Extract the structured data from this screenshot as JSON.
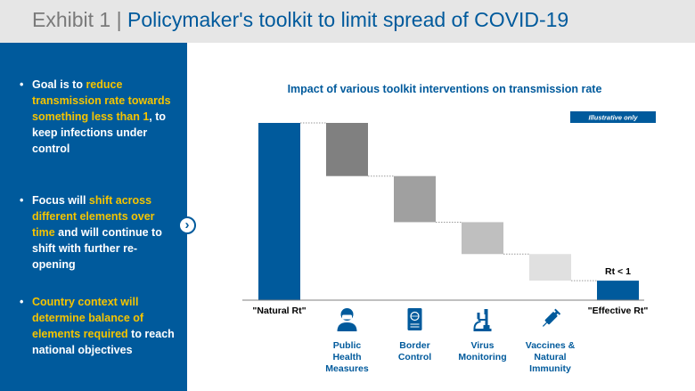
{
  "header": {
    "exhibit": "Exhibit 1",
    "separator": "|",
    "title": "Policymaker's toolkit to limit spread of COVID-19"
  },
  "sidebar": {
    "bullets": [
      {
        "segments": [
          {
            "text": "Goal is to ",
            "highlight": false
          },
          {
            "text": "reduce transmission rate towards something less than 1",
            "highlight": true
          },
          {
            "text": ", to keep infections under control",
            "highlight": false
          }
        ]
      },
      {
        "segments": [
          {
            "text": "Focus will ",
            "highlight": false
          },
          {
            "text": "shift across different elements over time",
            "highlight": true
          },
          {
            "text": " and will continue to shift with further re-opening",
            "highlight": false
          }
        ]
      },
      {
        "segments": [
          {
            "text": "Country context will determine balance of elements required",
            "highlight": true
          },
          {
            "text": " to reach national objectives",
            "highlight": false
          }
        ]
      }
    ],
    "arrow": "›"
  },
  "chart_data": {
    "type": "bar",
    "subtype": "waterfall",
    "title": "Impact of various toolkit interventions on transmission rate",
    "badge": "Illustrative only",
    "categories": [
      "\"Natural Rt\"",
      "Public Health Measures",
      "Border Control",
      "Virus Monitoring",
      "Vaccines & Natural Immunity",
      "\"Effective Rt\""
    ],
    "start": 100,
    "deltas": [
      -30,
      -26,
      -18,
      -15
    ],
    "end": 11,
    "annotation": "Rt < 1",
    "icons": [
      "masked-person-icon",
      "passport-icon",
      "microscope-icon",
      "syringe-icon"
    ],
    "colors": {
      "total": "#005a9c",
      "steps": [
        "#808080",
        "#a0a0a0",
        "#bfbfbf",
        "#e0e0e0"
      ],
      "label_blue": "#005a9c"
    },
    "ylim": [
      0,
      100
    ],
    "grid": false,
    "legend": "none"
  }
}
